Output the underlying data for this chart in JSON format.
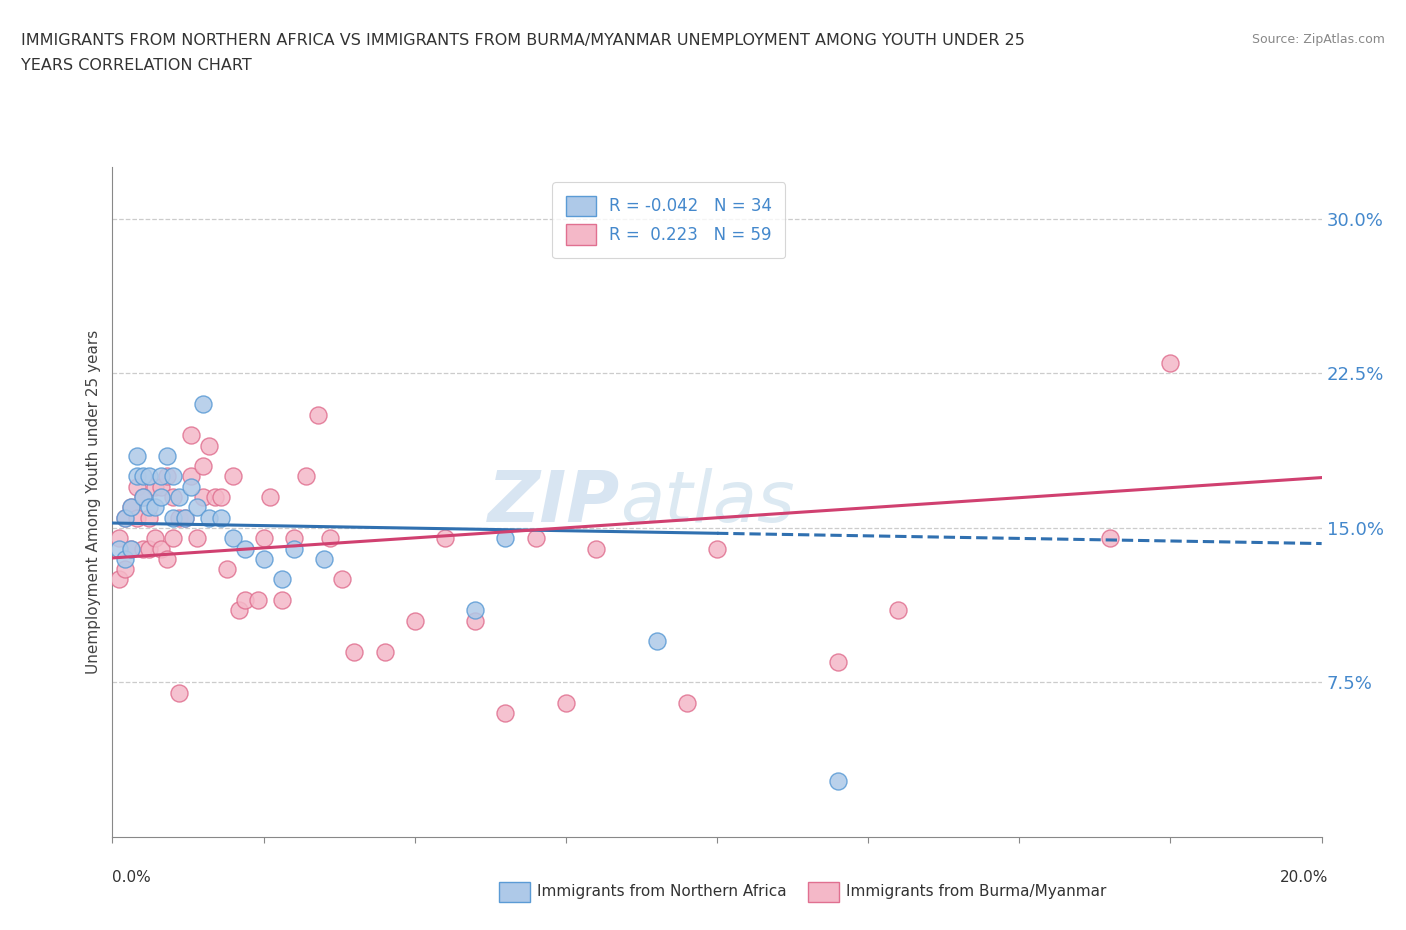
{
  "title_line1": "IMMIGRANTS FROM NORTHERN AFRICA VS IMMIGRANTS FROM BURMA/MYANMAR UNEMPLOYMENT AMONG YOUTH UNDER 25",
  "title_line2": "YEARS CORRELATION CHART",
  "source": "Source: ZipAtlas.com",
  "xlabel_left": "Immigrants from Northern Africa",
  "xlabel_right": "Immigrants from Burma/Myanmar",
  "ylabel": "Unemployment Among Youth under 25 years",
  "xlim": [
    0.0,
    0.2
  ],
  "ylim": [
    0.0,
    0.325
  ],
  "yticks": [
    0.075,
    0.15,
    0.225,
    0.3
  ],
  "ytick_labels": [
    "7.5%",
    "15.0%",
    "22.5%",
    "30.0%"
  ],
  "R_blue": -0.042,
  "N_blue": 34,
  "R_pink": 0.223,
  "N_pink": 59,
  "color_blue_fill": "#aec9e8",
  "color_blue_edge": "#5b9bd5",
  "color_pink_fill": "#f4b8c8",
  "color_pink_edge": "#e07090",
  "color_blue_line": "#3070b0",
  "color_pink_line": "#d04070",
  "watermark_zip": "ZIP",
  "watermark_atlas": "atlas",
  "blue_scatter_x": [
    0.001,
    0.002,
    0.002,
    0.003,
    0.003,
    0.004,
    0.004,
    0.005,
    0.005,
    0.006,
    0.006,
    0.007,
    0.008,
    0.008,
    0.009,
    0.01,
    0.01,
    0.011,
    0.012,
    0.013,
    0.014,
    0.015,
    0.016,
    0.018,
    0.02,
    0.022,
    0.025,
    0.028,
    0.03,
    0.035,
    0.06,
    0.065,
    0.09,
    0.12
  ],
  "blue_scatter_y": [
    0.14,
    0.135,
    0.155,
    0.14,
    0.16,
    0.175,
    0.185,
    0.165,
    0.175,
    0.16,
    0.175,
    0.16,
    0.175,
    0.165,
    0.185,
    0.155,
    0.175,
    0.165,
    0.155,
    0.17,
    0.16,
    0.21,
    0.155,
    0.155,
    0.145,
    0.14,
    0.135,
    0.125,
    0.14,
    0.135,
    0.11,
    0.145,
    0.095,
    0.027
  ],
  "pink_scatter_x": [
    0.001,
    0.001,
    0.002,
    0.002,
    0.003,
    0.003,
    0.004,
    0.004,
    0.005,
    0.005,
    0.006,
    0.006,
    0.007,
    0.007,
    0.008,
    0.008,
    0.009,
    0.009,
    0.01,
    0.01,
    0.011,
    0.011,
    0.012,
    0.013,
    0.013,
    0.014,
    0.015,
    0.015,
    0.016,
    0.017,
    0.018,
    0.019,
    0.02,
    0.021,
    0.022,
    0.024,
    0.025,
    0.026,
    0.028,
    0.03,
    0.032,
    0.034,
    0.036,
    0.038,
    0.04,
    0.045,
    0.05,
    0.055,
    0.06,
    0.065,
    0.07,
    0.075,
    0.08,
    0.095,
    0.1,
    0.12,
    0.13,
    0.165,
    0.175
  ],
  "pink_scatter_y": [
    0.125,
    0.145,
    0.13,
    0.155,
    0.14,
    0.16,
    0.155,
    0.17,
    0.14,
    0.165,
    0.14,
    0.155,
    0.145,
    0.17,
    0.14,
    0.17,
    0.135,
    0.175,
    0.145,
    0.165,
    0.07,
    0.155,
    0.155,
    0.175,
    0.195,
    0.145,
    0.165,
    0.18,
    0.19,
    0.165,
    0.165,
    0.13,
    0.175,
    0.11,
    0.115,
    0.115,
    0.145,
    0.165,
    0.115,
    0.145,
    0.175,
    0.205,
    0.145,
    0.125,
    0.09,
    0.09,
    0.105,
    0.145,
    0.105,
    0.06,
    0.145,
    0.065,
    0.14,
    0.065,
    0.14,
    0.085,
    0.11,
    0.145,
    0.23
  ]
}
